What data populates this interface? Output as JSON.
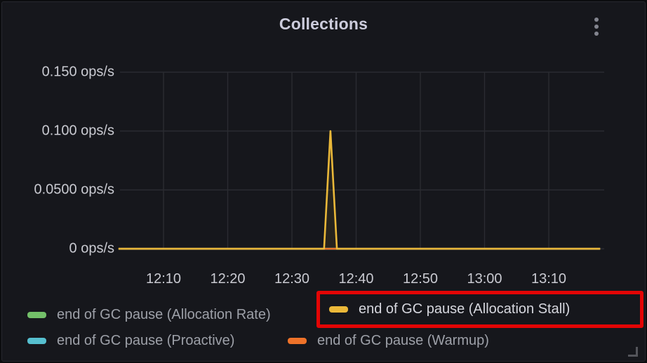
{
  "panel": {
    "title": "Collections",
    "kebab_menu": "panel-menu"
  },
  "colors": {
    "panel_bg": "#16171c",
    "grid": "#2a2c31",
    "axis_text": "#c9cad1",
    "title_text": "#ccccdc",
    "highlight_red": "#e30505",
    "series_green": "#73bf69",
    "series_yellow": "#eab839",
    "series_cyan": "#56bfcf",
    "series_orange": "#ee7229"
  },
  "chart_data": {
    "type": "line",
    "title": "Collections",
    "unit": "ops/s",
    "ylim": [
      0,
      0.175
    ],
    "grid": true,
    "legend_position": "bottom",
    "y_ticks": [
      {
        "label": "0.150 ops/s",
        "value": 0.15
      },
      {
        "label": "0.100 ops/s",
        "value": 0.1
      },
      {
        "label": "0.0500 ops/s",
        "value": 0.05
      },
      {
        "label": "0 ops/s",
        "value": 0
      }
    ],
    "x_ticks": [
      {
        "label": "12:10"
      },
      {
        "label": "12:20"
      },
      {
        "label": "12:30"
      },
      {
        "label": "12:40"
      },
      {
        "label": "12:50"
      },
      {
        "label": "13:00"
      },
      {
        "label": "13:10"
      }
    ],
    "series": [
      {
        "name": "end of GC pause (Allocation Rate)",
        "color": "#73bf69",
        "points": [
          [
            "12:03",
            0
          ],
          [
            "13:18",
            0
          ]
        ]
      },
      {
        "name": "end of GC pause (Proactive)",
        "color": "#56bfcf",
        "points": [
          [
            "12:03",
            0
          ],
          [
            "13:18",
            0
          ]
        ]
      },
      {
        "name": "end of GC pause (Warmup)",
        "color": "#ee7229",
        "points": [
          [
            "12:03",
            0
          ],
          [
            "13:18",
            0
          ]
        ]
      },
      {
        "name": "end of GC pause (Allocation Stall)",
        "color": "#eab839",
        "points": [
          [
            "12:03",
            0
          ],
          [
            "12:35",
            0
          ],
          [
            "12:36",
            0.1
          ],
          [
            "12:37",
            0
          ],
          [
            "13:18",
            0
          ]
        ]
      }
    ]
  },
  "legend": {
    "items": [
      {
        "label": "end of GC pause (Allocation Rate)",
        "color": "#73bf69",
        "highlighted": false
      },
      {
        "label": "end of GC pause (Allocation Stall)",
        "color": "#eab839",
        "highlighted": true
      },
      {
        "label": "end of GC pause (Proactive)",
        "color": "#56bfcf",
        "highlighted": false
      },
      {
        "label": "end of GC pause (Warmup)",
        "color": "#ee7229",
        "highlighted": false
      }
    ]
  }
}
